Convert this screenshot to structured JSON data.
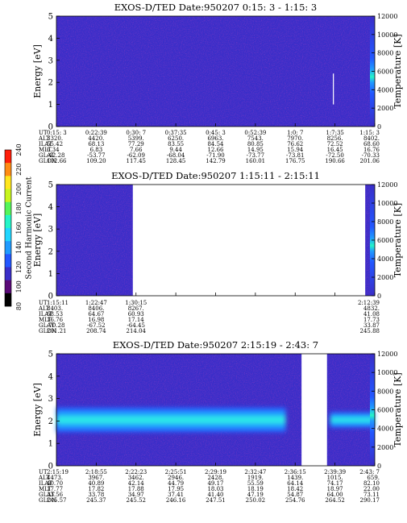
{
  "colorbar": {
    "label": "Second Harmonic Current",
    "ticks": [
      "80",
      "100",
      "120",
      "140",
      "160",
      "180",
      "200",
      "220",
      "240"
    ],
    "colors": [
      "#000000",
      "#5a0a78",
      "#3a2ec8",
      "#2357ff",
      "#1f9bff",
      "#21d6ff",
      "#25f5c8",
      "#55f55a",
      "#c8f51e",
      "#ffe61e",
      "#ff8c14",
      "#ff1e0a"
    ]
  },
  "chart_data": [
    {
      "type": "heatmap",
      "title": "EXOS-D/TED   Date:950207  0:15: 3 - 1:15: 3",
      "ylabel": "Energy [eV]",
      "y2label": "Temperature [K]",
      "ylim": [
        0,
        5
      ],
      "yticks": [
        "0",
        "1",
        "2",
        "3",
        "4",
        "5"
      ],
      "y2lim": [
        0,
        12000
      ],
      "y2ticks": [
        "0",
        "2000",
        "4000",
        "6000",
        "8000",
        "10000",
        "12000"
      ],
      "data_gaps": [],
      "bands": [],
      "annotations": [
        {
          "x": 0.87,
          "y0": 1.0,
          "y1": 2.4
        }
      ],
      "table": {
        "labels": [
          "UT",
          "ALT",
          "ILAT",
          "MLT",
          "GLAT",
          "GLON"
        ],
        "columns": [
          [
            "0:15: 3",
            "3320.",
            "55.42",
            "6.34",
            "-42.28",
            "102.66"
          ],
          [
            "0:22:39",
            "4420.",
            "68.13",
            "6.83",
            "-53.77",
            "109.20"
          ],
          [
            "0:30: 7",
            "5399.",
            "77.29",
            "7.66",
            "-62.09",
            "117.45"
          ],
          [
            "0:37:35",
            "6250.",
            "83.55",
            "9.44",
            "-68.04",
            "128.45"
          ],
          [
            "0:45: 3",
            "6963.",
            "84.54",
            "12.66",
            "-71.90",
            "142.79"
          ],
          [
            "0:52:39",
            "7543.",
            "80.85",
            "14.95",
            "-73.77",
            "160.01"
          ],
          [
            "1:0: 7",
            "7970.",
            "76.62",
            "15.94",
            "-73.81",
            "176.75"
          ],
          [
            "1:7:35",
            "8256.",
            "72.52",
            "16.45",
            "-72.50",
            "190.66"
          ],
          [
            "1:15: 3",
            "8402.",
            "68.60",
            "16.76",
            "-70.33",
            "201.06"
          ]
        ]
      }
    },
    {
      "type": "heatmap",
      "title": "EXOS-D/TED   Date:950207  1:15:11 - 2:15:11",
      "ylabel": "Energy [eV]",
      "y2label": "Temperature [K]",
      "ylim": [
        0,
        5
      ],
      "yticks": [
        "0",
        "1",
        "2",
        "3",
        "4",
        "5"
      ],
      "y2lim": [
        0,
        12000
      ],
      "y2ticks": [
        "0",
        "2000",
        "4000",
        "6000",
        "8000",
        "10000",
        "12000"
      ],
      "data_gaps": [
        [
          0.24,
          0.97
        ]
      ],
      "bands": [],
      "annotations": [],
      "table": {
        "labels": [
          "UT",
          "ALT",
          "ILAT",
          "MLT",
          "GLAT",
          "GLON"
        ],
        "columns": [
          [
            "1:15:11",
            "8403.",
            "68.53",
            "16.76",
            "-70.28",
            "201.21"
          ],
          [
            "1:22:47",
            "8406.",
            "64.67",
            "16.98",
            "-67.52",
            "208.74"
          ],
          [
            "1:30:15",
            "8267.",
            "60.93",
            "17.14",
            "-64.45",
            "214.04"
          ],
          [
            "",
            "",
            "",
            "",
            "",
            ""
          ],
          [
            "",
            "",
            "",
            "",
            "",
            ""
          ],
          [
            "",
            "",
            "",
            "",
            "",
            ""
          ],
          [
            "",
            "",
            "",
            "",
            "",
            ""
          ],
          [
            "",
            "",
            "",
            "",
            "",
            ""
          ],
          [
            "2:12:39",
            "4832.",
            "41.08",
            "17.73",
            "33.87",
            "245.88"
          ]
        ]
      }
    },
    {
      "type": "heatmap",
      "title": "EXOS-D/TED   Date:950207  2:15:19 - 2:43: 7",
      "ylabel": "Energy [eV]",
      "y2label": "Temperature [K]",
      "ylim": [
        0,
        5
      ],
      "yticks": [
        "0",
        "1",
        "2",
        "3",
        "4",
        "5"
      ],
      "y2lim": [
        0,
        12000
      ],
      "y2ticks": [
        "0",
        "2000",
        "4000",
        "6000",
        "8000",
        "10000",
        "12000"
      ],
      "data_gaps": [
        [
          0.77,
          0.85
        ]
      ],
      "bands": [
        {
          "x0": 0.0,
          "x1": 0.72,
          "ylow": 1.5,
          "yhigh": 2.6,
          "peak": 2.05
        },
        {
          "x0": 0.86,
          "x1": 1.0,
          "ylow": 1.7,
          "yhigh": 2.4,
          "peak": 2.05
        }
      ],
      "annotations": [],
      "table": {
        "labels": [
          "UT",
          "ALT",
          "ILAT",
          "MLT",
          "GLAT",
          "GLON"
        ],
        "columns": [
          [
            "2:15:19",
            "4473.",
            "40.70",
            "17.77",
            "33.56",
            "245.57"
          ],
          [
            "2:18:55",
            "3967.",
            "40.89",
            "17.82",
            "33.78",
            "245.37"
          ],
          [
            "2:22:23",
            "3462.",
            "42.14",
            "17.88",
            "34.97",
            "245.52"
          ],
          [
            "2:25:51",
            "2946.",
            "44.79",
            "17.95",
            "37.41",
            "246.16"
          ],
          [
            "2:29:19",
            "2428.",
            "49.17",
            "18.03",
            "41.40",
            "247.51"
          ],
          [
            "2:32:47",
            "1919.",
            "55.59",
            "18.19",
            "47.19",
            "250.02"
          ],
          [
            "2:36:15",
            "1439.",
            "64.14",
            "18.42",
            "54.87",
            "254.76"
          ],
          [
            "2:39:39",
            "1015.",
            "74.17",
            "18.97",
            "64.00",
            "264.52"
          ],
          [
            "2:43: 7",
            "659.",
            "82.10",
            "22.00",
            "73.11",
            "290.17"
          ]
        ]
      }
    }
  ]
}
